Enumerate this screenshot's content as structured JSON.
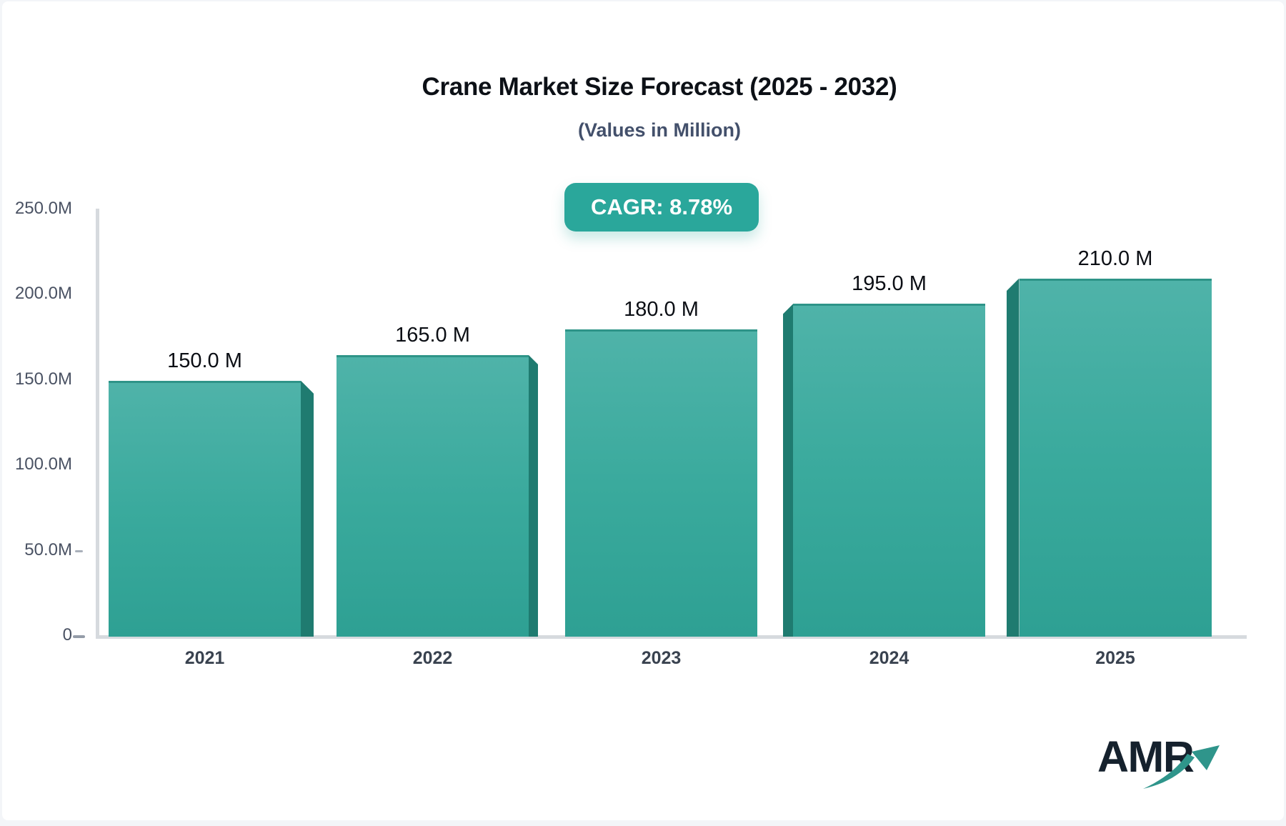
{
  "page": {
    "background": "#f3f5f8",
    "card_background": "#ffffff"
  },
  "header": {
    "title": "Crane Market Size Forecast (2025 - 2032)",
    "subtitle": "(Values in Million)",
    "cagr_label": "CAGR: 8.78%",
    "badge_color": "#2aa79b"
  },
  "chart_data": {
    "type": "bar",
    "title": "Crane Market Size Forecast (2025 - 2032)",
    "subtitle": "(Values in Million)",
    "unit": "Million",
    "categories": [
      "2021",
      "2022",
      "2023",
      "2024",
      "2025"
    ],
    "values": [
      150.0,
      165.0,
      180.0,
      195.0,
      210.0
    ],
    "bar_value_labels": [
      "150.0 M",
      "165.0 M",
      "180.0 M",
      "195.0 M",
      "210.0 M"
    ],
    "cagr_percent": 8.78,
    "y_axis": {
      "min": 0,
      "max": 250,
      "ticks": [
        {
          "label": "250.0M",
          "value": 250,
          "dash": false
        },
        {
          "label": "200.0M",
          "value": 200,
          "dash": false
        },
        {
          "label": "150.0M",
          "value": 150,
          "dash": false
        },
        {
          "label": "100.0M",
          "value": 100,
          "dash": false
        },
        {
          "label": "50.0M",
          "value": 50,
          "dash": true
        },
        {
          "label": "0",
          "value": 0,
          "dash": true
        }
      ]
    },
    "legend": false,
    "grid": false,
    "colors": {
      "bar_top": "#4fb3a9",
      "bar_mid": "#3aaa9d",
      "bar_bottom": "#2ea093",
      "bar_side": "#1f7b70",
      "bar_top_edge": "#2e9488",
      "axis_line": "#d6dade",
      "tick_label": "#4a5263",
      "category_label": "#39424f",
      "value_label": "#0b0e14"
    }
  },
  "logo": {
    "text": "AMR",
    "color": "#15212d",
    "arrow_color": "#2f958b"
  }
}
